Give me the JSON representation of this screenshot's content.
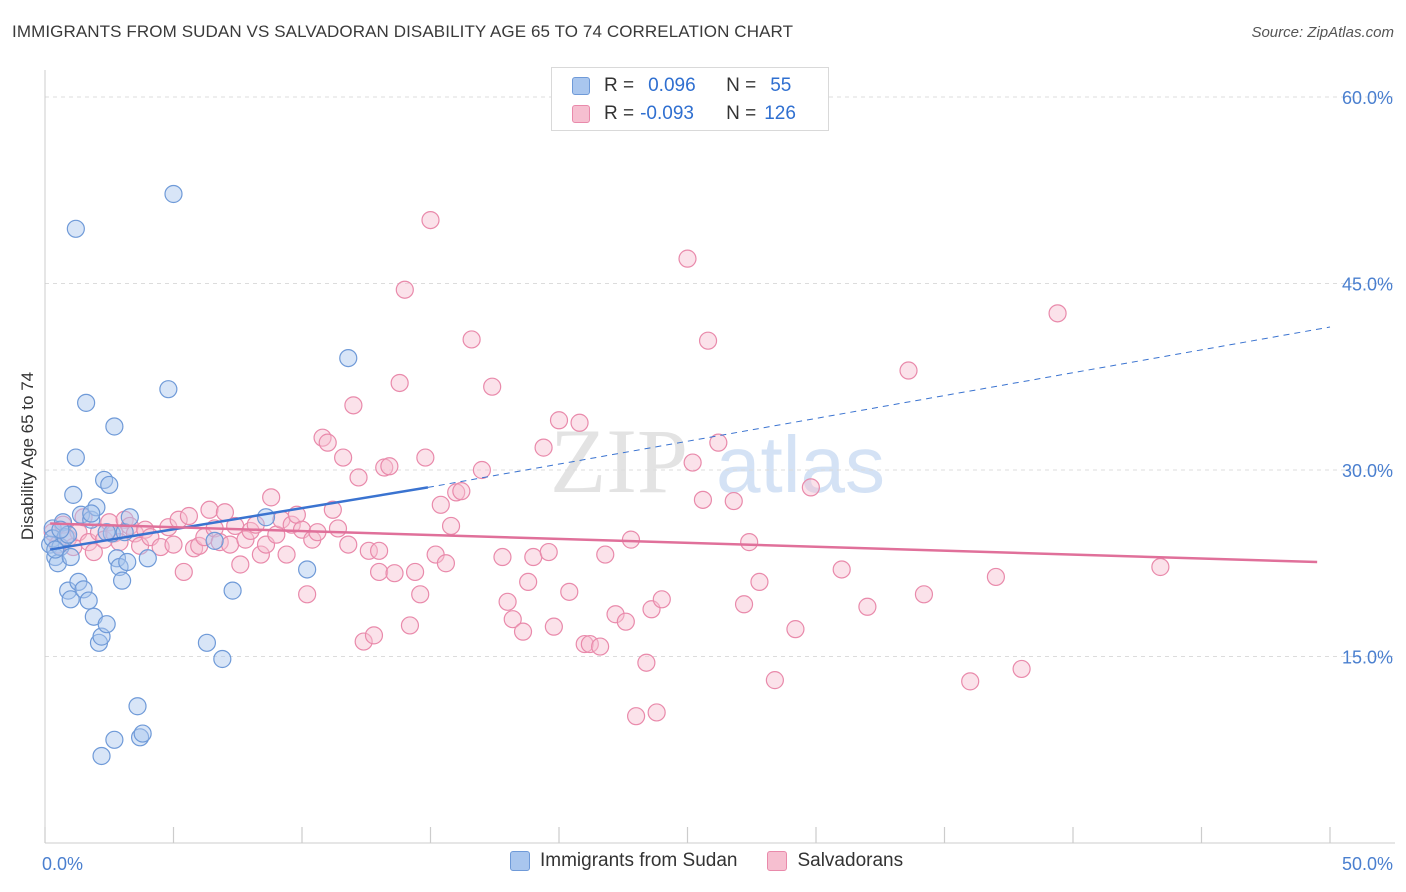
{
  "title": "IMMIGRANTS FROM SUDAN VS SALVADORAN DISABILITY AGE 65 TO 74 CORRELATION CHART",
  "source": "Source: ZipAtlas.com",
  "watermark": {
    "zip": "ZIP",
    "atlas": "atlas"
  },
  "legend": {
    "rows": [
      {
        "r_label": "R =",
        "r_value": "0.096",
        "n_label": "N =",
        "n_value": "55"
      },
      {
        "r_label": "R =",
        "r_value": "-0.093",
        "n_label": "N =",
        "n_value": "126"
      }
    ]
  },
  "colors": {
    "sudan_fill": "#a9c6ee",
    "sudan_stroke": "#6f9ad8",
    "sudan_line": "#3a73d0",
    "salv_fill": "#f6bfd0",
    "salv_stroke": "#e98aab",
    "salv_line": "#e0709a",
    "grid": "#dcdcdc",
    "axis_text": "#4a7fcf"
  },
  "chart_data": {
    "type": "scatter",
    "title": "IMMIGRANTS FROM SUDAN VS SALVADORAN DISABILITY AGE 65 TO 74 CORRELATION CHART",
    "xlabel": "",
    "ylabel": "Disability Age 65 to 74",
    "xlim": [
      0,
      50
    ],
    "ylim": [
      0,
      60
    ],
    "x_tick_labels": [
      "0.0%",
      "50.0%"
    ],
    "y_ticks": [
      15,
      30,
      45,
      60
    ],
    "y_tick_labels": [
      "15.0%",
      "30.0%",
      "45.0%",
      "60.0%"
    ],
    "grid": true,
    "legend_position": "bottom",
    "series": [
      {
        "name": "Immigrants from Sudan",
        "trend": {
          "x": [
            0.2,
            14.9
          ],
          "y": [
            23.6,
            28.6
          ],
          "dashed_to": [
            50,
            41.5
          ]
        },
        "points": [
          [
            0.2,
            24.0
          ],
          [
            0.3,
            25.3
          ],
          [
            0.4,
            23.0
          ],
          [
            0.5,
            22.5
          ],
          [
            0.3,
            24.5
          ],
          [
            0.6,
            23.8
          ],
          [
            0.7,
            25.8
          ],
          [
            0.8,
            24.6
          ],
          [
            0.9,
            20.3
          ],
          [
            1.0,
            19.6
          ],
          [
            1.0,
            23.0
          ],
          [
            1.1,
            28.0
          ],
          [
            1.2,
            31.0
          ],
          [
            1.3,
            21.0
          ],
          [
            1.4,
            26.4
          ],
          [
            1.5,
            20.4
          ],
          [
            1.6,
            35.4
          ],
          [
            1.7,
            19.5
          ],
          [
            1.8,
            26.0
          ],
          [
            1.9,
            18.2
          ],
          [
            2.0,
            27.0
          ],
          [
            2.1,
            16.1
          ],
          [
            2.2,
            16.6
          ],
          [
            2.3,
            29.2
          ],
          [
            2.4,
            17.6
          ],
          [
            2.5,
            28.8
          ],
          [
            2.6,
            24.9
          ],
          [
            2.7,
            33.5
          ],
          [
            2.8,
            22.9
          ],
          [
            2.9,
            22.2
          ],
          [
            3.0,
            21.1
          ],
          [
            3.1,
            25.0
          ],
          [
            3.2,
            22.6
          ],
          [
            3.3,
            26.2
          ],
          [
            3.6,
            11.0
          ],
          [
            3.7,
            8.5
          ],
          [
            3.8,
            8.8
          ],
          [
            4.0,
            22.9
          ],
          [
            4.8,
            36.5
          ],
          [
            5.0,
            52.2
          ],
          [
            6.3,
            16.1
          ],
          [
            6.6,
            24.3
          ],
          [
            6.9,
            14.8
          ],
          [
            7.3,
            20.3
          ],
          [
            8.6,
            26.2
          ],
          [
            10.2,
            22.0
          ],
          [
            11.8,
            39.0
          ],
          [
            2.2,
            7.0
          ],
          [
            2.7,
            8.3
          ],
          [
            1.2,
            49.4
          ],
          [
            0.4,
            23.6
          ],
          [
            1.8,
            26.5
          ],
          [
            2.4,
            25.0
          ],
          [
            0.9,
            24.8
          ],
          [
            0.6,
            25.2
          ]
        ]
      },
      {
        "name": "Salvadorans",
        "trend": {
          "x": [
            0.2,
            49.5
          ],
          "y": [
            25.7,
            22.6
          ]
        },
        "points": [
          [
            0.3,
            25.0
          ],
          [
            0.5,
            24.0
          ],
          [
            0.7,
            25.6
          ],
          [
            0.9,
            24.5
          ],
          [
            1.1,
            23.8
          ],
          [
            1.3,
            25.0
          ],
          [
            1.5,
            26.2
          ],
          [
            1.7,
            24.2
          ],
          [
            1.9,
            23.4
          ],
          [
            2.1,
            25.0
          ],
          [
            2.3,
            24.4
          ],
          [
            2.5,
            25.8
          ],
          [
            2.7,
            24.9
          ],
          [
            2.9,
            24.2
          ],
          [
            3.1,
            26.0
          ],
          [
            3.3,
            25.5
          ],
          [
            3.5,
            24.9
          ],
          [
            3.7,
            23.9
          ],
          [
            3.9,
            25.2
          ],
          [
            4.1,
            24.6
          ],
          [
            4.5,
            23.8
          ],
          [
            4.8,
            25.4
          ],
          [
            5.0,
            24.0
          ],
          [
            5.2,
            26.0
          ],
          [
            5.4,
            21.8
          ],
          [
            5.6,
            26.3
          ],
          [
            5.8,
            23.7
          ],
          [
            6.0,
            23.9
          ],
          [
            6.2,
            24.6
          ],
          [
            6.4,
            26.8
          ],
          [
            6.6,
            25.3
          ],
          [
            6.8,
            24.2
          ],
          [
            7.0,
            26.6
          ],
          [
            7.2,
            24.0
          ],
          [
            7.4,
            25.5
          ],
          [
            7.6,
            22.4
          ],
          [
            7.8,
            24.4
          ],
          [
            8.0,
            25.1
          ],
          [
            8.2,
            25.6
          ],
          [
            8.4,
            23.2
          ],
          [
            8.6,
            24.0
          ],
          [
            8.8,
            27.8
          ],
          [
            9.0,
            24.8
          ],
          [
            9.2,
            26.0
          ],
          [
            9.4,
            23.2
          ],
          [
            9.6,
            25.6
          ],
          [
            9.8,
            26.4
          ],
          [
            10.0,
            25.2
          ],
          [
            10.2,
            20.0
          ],
          [
            10.4,
            24.4
          ],
          [
            10.6,
            25.0
          ],
          [
            10.8,
            32.6
          ],
          [
            11.0,
            32.2
          ],
          [
            11.2,
            26.8
          ],
          [
            11.4,
            25.3
          ],
          [
            11.6,
            31.0
          ],
          [
            11.8,
            24.0
          ],
          [
            12.0,
            35.2
          ],
          [
            12.2,
            29.4
          ],
          [
            12.4,
            16.2
          ],
          [
            12.6,
            23.5
          ],
          [
            12.8,
            16.7
          ],
          [
            13.0,
            21.8
          ],
          [
            13.2,
            30.2
          ],
          [
            13.4,
            30.3
          ],
          [
            13.6,
            21.7
          ],
          [
            13.8,
            37.0
          ],
          [
            14.0,
            44.5
          ],
          [
            14.2,
            17.5
          ],
          [
            14.4,
            21.8
          ],
          [
            14.6,
            20.0
          ],
          [
            14.8,
            31.0
          ],
          [
            15.0,
            50.1
          ],
          [
            15.2,
            23.2
          ],
          [
            15.4,
            27.2
          ],
          [
            15.6,
            22.5
          ],
          [
            15.8,
            25.5
          ],
          [
            16.0,
            28.2
          ],
          [
            16.2,
            28.3
          ],
          [
            16.6,
            40.5
          ],
          [
            17.0,
            30.0
          ],
          [
            17.4,
            36.7
          ],
          [
            17.8,
            23.0
          ],
          [
            18.0,
            19.4
          ],
          [
            18.2,
            18.0
          ],
          [
            18.6,
            17.0
          ],
          [
            18.8,
            21.0
          ],
          [
            19.0,
            23.0
          ],
          [
            19.4,
            31.8
          ],
          [
            19.6,
            23.4
          ],
          [
            19.8,
            17.4
          ],
          [
            20.0,
            34.0
          ],
          [
            20.4,
            20.2
          ],
          [
            20.8,
            33.8
          ],
          [
            21.0,
            16.0
          ],
          [
            21.2,
            16.0
          ],
          [
            21.6,
            15.8
          ],
          [
            21.8,
            23.2
          ],
          [
            22.2,
            18.4
          ],
          [
            22.6,
            17.8
          ],
          [
            22.8,
            24.4
          ],
          [
            23.0,
            10.2
          ],
          [
            23.4,
            14.5
          ],
          [
            23.6,
            18.8
          ],
          [
            23.8,
            10.5
          ],
          [
            24.0,
            19.6
          ],
          [
            25.0,
            47.0
          ],
          [
            25.2,
            30.6
          ],
          [
            25.6,
            27.6
          ],
          [
            25.8,
            40.4
          ],
          [
            26.2,
            32.2
          ],
          [
            26.8,
            27.5
          ],
          [
            27.2,
            19.2
          ],
          [
            27.4,
            24.2
          ],
          [
            27.8,
            21.0
          ],
          [
            28.4,
            13.1
          ],
          [
            29.2,
            17.2
          ],
          [
            29.8,
            28.6
          ],
          [
            31.0,
            22.0
          ],
          [
            32.0,
            19.0
          ],
          [
            33.6,
            38.0
          ],
          [
            34.2,
            20.0
          ],
          [
            36.0,
            13.0
          ],
          [
            37.0,
            21.4
          ],
          [
            38.0,
            14.0
          ],
          [
            39.4,
            42.6
          ],
          [
            43.4,
            22.2
          ],
          [
            13.0,
            23.5
          ]
        ]
      }
    ]
  },
  "bottom_legend": {
    "items": [
      {
        "label": "Immigrants from Sudan"
      },
      {
        "label": "Salvadorans"
      }
    ]
  }
}
